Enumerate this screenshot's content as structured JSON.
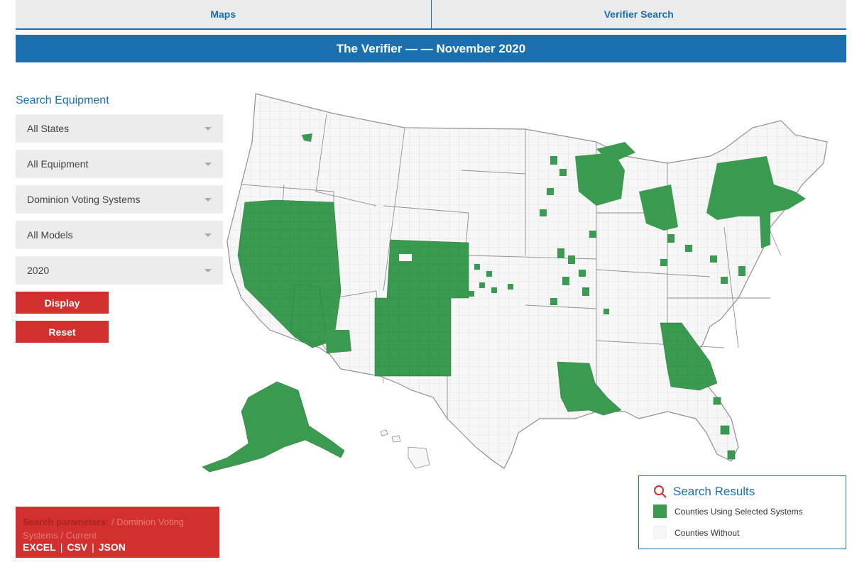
{
  "nav": {
    "tabs": [
      "Maps",
      "Verifier Search"
    ]
  },
  "banner": {
    "title": "The Verifier — — November 2020"
  },
  "search": {
    "title": "Search Equipment",
    "filters": [
      "All States",
      "All Equipment",
      "Dominion Voting Systems",
      "All Models",
      "2020"
    ],
    "display_label": "Display",
    "reset_label": "Reset"
  },
  "params": {
    "label": "Search parameters:",
    "value": " / Dominion Voting Systems / Current",
    "links": [
      "EXCEL",
      "CSV",
      "JSON"
    ]
  },
  "results": {
    "title": "Search Results",
    "legend": [
      {
        "label": "Counties Using Selected Systems",
        "color": "#3a9a50"
      },
      {
        "label": "Counties Without",
        "color": "#f7f7f7"
      }
    ]
  },
  "colors": {
    "accent": "#1a6fae",
    "button": "#d2302e",
    "selected": "#3a9a50",
    "without": "#f7f7f7"
  },
  "icons": {
    "results": "search-icon"
  }
}
